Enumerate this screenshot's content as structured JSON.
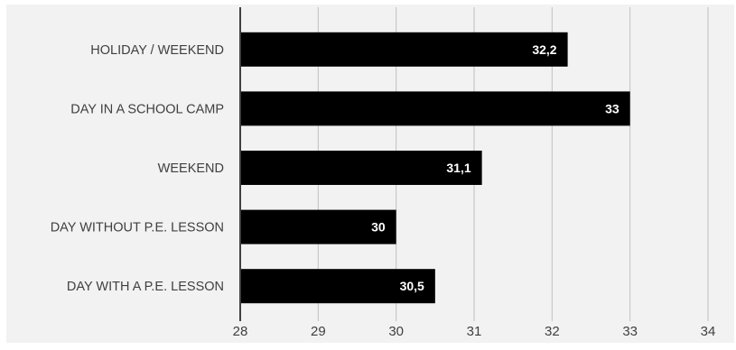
{
  "chart_data": {
    "type": "bar",
    "orientation": "horizontal",
    "categories": [
      "HOLIDAY / WEEKEND",
      "DAY IN A SCHOOL CAMP",
      "WEEKEND",
      "DAY WITHOUT P.E. LESSON",
      "DAY WITH A P.E. LESSON"
    ],
    "values": [
      32.2,
      33,
      31.1,
      30,
      30.5
    ],
    "data_labels": [
      "32,2",
      "33",
      "31,1",
      "30",
      "30,5"
    ],
    "xlim": [
      28,
      34
    ],
    "ticks": [
      "28",
      "29",
      "30",
      "31",
      "32",
      "33",
      "34"
    ],
    "grid": true,
    "bar_color": "#000000",
    "grid_color": "#bfbfbf",
    "background": "#f2f2f2"
  }
}
